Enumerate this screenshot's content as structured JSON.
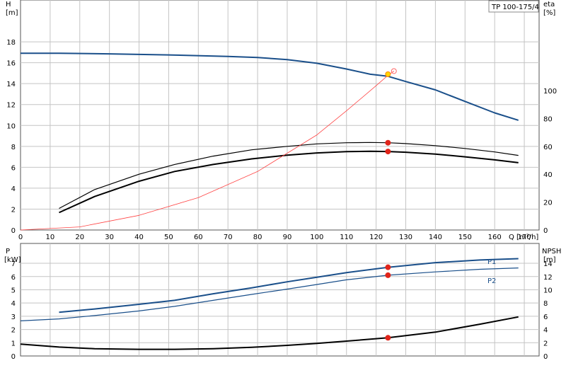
{
  "model_label": "TP 100-175/4",
  "chart_data": [
    {
      "type": "line",
      "x_axis": {
        "label": "Q [m³/h]",
        "lim": [
          0,
          175
        ],
        "ticks": [
          0,
          10,
          20,
          30,
          40,
          50,
          60,
          70,
          80,
          90,
          100,
          110,
          120,
          130,
          140,
          150,
          160,
          170
        ]
      },
      "y_left": {
        "label_top": "H",
        "label_unit": "[m]",
        "lim": [
          0,
          22
        ],
        "ticks": [
          0,
          2,
          4,
          6,
          8,
          10,
          12,
          14,
          16,
          18
        ]
      },
      "y_right": {
        "label_top": "eta",
        "label_unit": "[%]",
        "lim": [
          0,
          165
        ],
        "ticks": [
          0,
          20,
          40,
          60,
          80,
          100
        ]
      },
      "grid": true,
      "series": [
        {
          "axis": "left",
          "color": "#1a4f8a",
          "width": 2,
          "points": [
            [
              0,
              16.9
            ],
            [
              13,
              16.9
            ],
            [
              30,
              16.85
            ],
            [
              50,
              16.75
            ],
            [
              70,
              16.6
            ],
            [
              80,
              16.5
            ],
            [
              90,
              16.3
            ],
            [
              100,
              15.95
            ],
            [
              110,
              15.4
            ],
            [
              118,
              14.9
            ],
            [
              124,
              14.7
            ],
            [
              130,
              14.2
            ],
            [
              140,
              13.4
            ],
            [
              150,
              12.3
            ],
            [
              160,
              11.2
            ],
            [
              168,
              10.5
            ]
          ]
        },
        {
          "axis": "right",
          "color": "#000000",
          "width": 1.2,
          "points": [
            [
              13,
              15.5
            ],
            [
              25,
              29
            ],
            [
              40,
              40
            ],
            [
              52,
              47
            ],
            [
              65,
              53
            ],
            [
              78,
              57.5
            ],
            [
              90,
              60
            ],
            [
              100,
              61.8
            ],
            [
              110,
              62.6
            ],
            [
              118,
              62.8
            ],
            [
              124,
              62.6
            ],
            [
              130,
              62
            ],
            [
              140,
              60.5
            ],
            [
              150,
              58.5
            ],
            [
              160,
              56
            ],
            [
              168,
              53.5
            ]
          ]
        },
        {
          "axis": "right",
          "color": "#000000",
          "width": 2,
          "points": [
            [
              13,
              12.5
            ],
            [
              25,
              24
            ],
            [
              40,
              35
            ],
            [
              52,
              42
            ],
            [
              65,
              47
            ],
            [
              78,
              51
            ],
            [
              90,
              53.7
            ],
            [
              100,
              55.3
            ],
            [
              110,
              56.2
            ],
            [
              118,
              56.5
            ],
            [
              124,
              56.3
            ],
            [
              130,
              55.8
            ],
            [
              140,
              54.5
            ],
            [
              150,
              52.5
            ],
            [
              160,
              50.3
            ],
            [
              168,
              48.3
            ]
          ]
        },
        {
          "axis": "left",
          "color": "#ff4444",
          "width": 0.8,
          "points": [
            [
              0,
              0
            ],
            [
              20,
              0.3
            ],
            [
              40,
              1.4
            ],
            [
              60,
              3.1
            ],
            [
              80,
              5.6
            ],
            [
              100,
              9.1
            ],
            [
              110,
              11.4
            ],
            [
              120,
              13.8
            ],
            [
              124,
              14.8
            ],
            [
              126,
              15.2
            ]
          ]
        }
      ],
      "operating_points": [
        {
          "axis": "left",
          "x": 124,
          "y": 14.9,
          "color": "#ffd700",
          "stroke": "#ff8800"
        },
        {
          "axis": "right",
          "x": 124,
          "y": 62.6,
          "color": "#e0241a",
          "stroke": "#e0241a"
        },
        {
          "axis": "right",
          "x": 124,
          "y": 56.3,
          "color": "#e0241a",
          "stroke": "#e0241a"
        }
      ],
      "extra_markers": [
        {
          "axis": "left",
          "x": 126,
          "y": 15.2,
          "color": "none",
          "stroke": "#ff6666"
        }
      ]
    },
    {
      "type": "line",
      "x_axis": {
        "label": "",
        "lim": [
          0,
          175
        ],
        "ticks": []
      },
      "y_left": {
        "label_top": "P",
        "label_unit": "[kW]",
        "lim": [
          0,
          8.5
        ],
        "ticks": [
          0,
          1,
          2,
          3,
          4,
          5,
          6,
          7
        ]
      },
      "y_right": {
        "label_top": "NPSH",
        "label_unit": "[m]",
        "lim": [
          0,
          17
        ],
        "ticks": [
          0,
          2,
          4,
          6,
          8,
          10,
          12,
          14
        ]
      },
      "grid": true,
      "series": [
        {
          "name": "P1",
          "axis": "left",
          "color": "#1a4f8a",
          "width": 2,
          "points": [
            [
              13,
              3.3
            ],
            [
              25,
              3.55
            ],
            [
              40,
              3.9
            ],
            [
              52,
              4.2
            ],
            [
              65,
              4.7
            ],
            [
              78,
              5.15
            ],
            [
              90,
              5.6
            ],
            [
              100,
              5.95
            ],
            [
              110,
              6.3
            ],
            [
              124,
              6.7
            ],
            [
              140,
              7.05
            ],
            [
              155,
              7.25
            ],
            [
              168,
              7.35
            ]
          ]
        },
        {
          "name": "P2",
          "axis": "left",
          "color": "#1a4f8a",
          "width": 1.2,
          "points": [
            [
              0,
              2.65
            ],
            [
              13,
              2.8
            ],
            [
              25,
              3.05
            ],
            [
              40,
              3.4
            ],
            [
              52,
              3.75
            ],
            [
              65,
              4.2
            ],
            [
              78,
              4.65
            ],
            [
              90,
              5.05
            ],
            [
              100,
              5.4
            ],
            [
              110,
              5.75
            ],
            [
              124,
              6.1
            ],
            [
              140,
              6.35
            ],
            [
              155,
              6.55
            ],
            [
              168,
              6.65
            ]
          ]
        },
        {
          "axis": "right",
          "color": "#000000",
          "width": 2,
          "points": [
            [
              0,
              1.8
            ],
            [
              13,
              1.35
            ],
            [
              25,
              1.1
            ],
            [
              40,
              1.0
            ],
            [
              52,
              1.0
            ],
            [
              65,
              1.1
            ],
            [
              78,
              1.3
            ],
            [
              90,
              1.6
            ],
            [
              100,
              1.9
            ],
            [
              110,
              2.25
            ],
            [
              124,
              2.75
            ],
            [
              140,
              3.6
            ],
            [
              155,
              4.8
            ],
            [
              168,
              5.9
            ]
          ]
        }
      ],
      "operating_points": [
        {
          "axis": "left",
          "x": 124,
          "y": 6.7,
          "color": "#e0241a",
          "stroke": "#e0241a"
        },
        {
          "axis": "left",
          "x": 124,
          "y": 6.1,
          "color": "#e0241a",
          "stroke": "#e0241a"
        },
        {
          "axis": "right",
          "x": 124,
          "y": 2.75,
          "color": "#e0241a",
          "stroke": "#e0241a"
        }
      ]
    }
  ]
}
